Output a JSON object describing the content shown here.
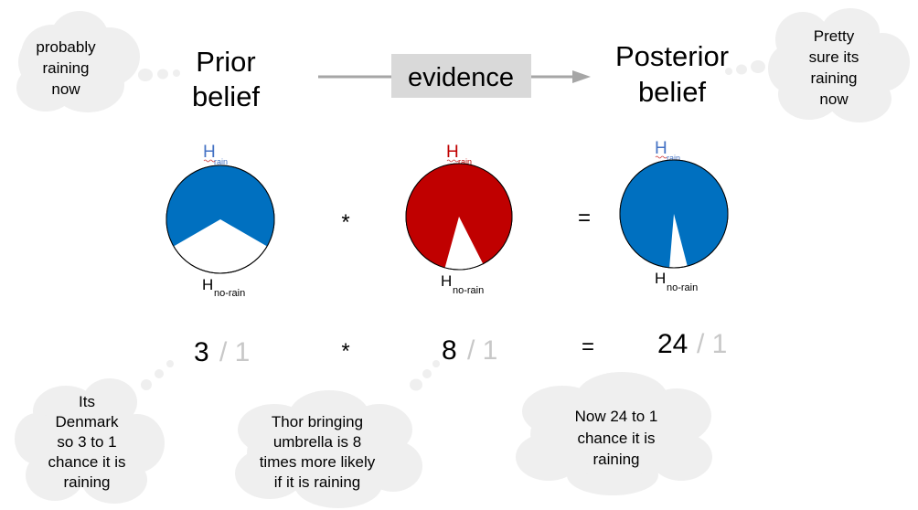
{
  "prior": {
    "line1": "Prior",
    "line2": "belief"
  },
  "evidence": {
    "label": "evidence"
  },
  "posterior": {
    "line1": "Posterior",
    "line2": "belief"
  },
  "clouds": {
    "top_left": [
      "probably",
      "raining",
      "now"
    ],
    "top_right": [
      "Pretty",
      "sure its",
      "raining",
      "now"
    ],
    "bottom_left": [
      "Its",
      "Denmark",
      "so 3 to 1",
      "chance it is",
      "raining"
    ],
    "bottom_middle": [
      "Thor bringing",
      "umbrella is 8",
      "times more likely",
      "if it is raining"
    ],
    "bottom_right": [
      "Now 24 to 1",
      "chance it is",
      "raining"
    ]
  },
  "hypotheses": {
    "h": "H",
    "rain_sub": "rain",
    "norain_sub": "no-rain"
  },
  "operators": {
    "multiply": "*",
    "equals": "="
  },
  "odds": {
    "prior": {
      "num": "3",
      "den": "/ 1"
    },
    "likelihood": {
      "num": "8",
      "den": "/ 1"
    },
    "posterior": {
      "num": "24",
      "den": "/ 1"
    }
  },
  "colors": {
    "blue": "#0070c0",
    "red": "#c00000",
    "h_blue": "#4472c4",
    "cloud": "#efefef",
    "evidence_box": "#d9d9d9",
    "arrow": "#a6a6a6",
    "denominator": "#c8c8c8"
  }
}
